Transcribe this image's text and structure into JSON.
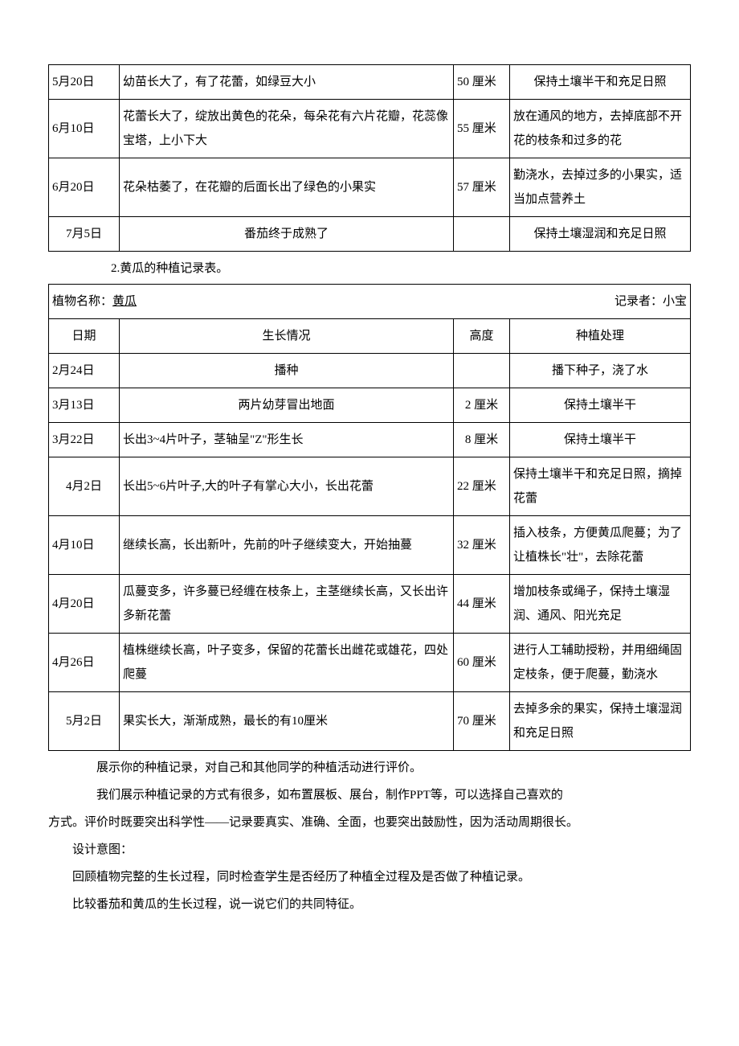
{
  "table1": {
    "rows": [
      {
        "date": "5月20日",
        "growth": "幼苗长大了，有了花蕾，如绿豆大小",
        "height": "50 厘米",
        "proc": "保持土壤半干和充足日照"
      },
      {
        "date": "6月10日",
        "growth": "花蕾长大了，绽放出黄色的花朵，每朵花有六片花瓣，花蕊像宝塔，上小下大",
        "height": "55 厘米",
        "proc": "放在通风的地方，去掉底部不开花的枝条和过多的花"
      },
      {
        "date": "6月20日",
        "growth": "花朵枯萎了，在花瓣的后面长出了绿色的小果实",
        "height": "57 厘米",
        "proc": "勤浇水，去掉过多的小果实，适当加点营养土"
      },
      {
        "date": "7月5日",
        "growth": "番茄终于成熟了",
        "height": "",
        "proc": "保持土壤湿润和充足日照"
      }
    ]
  },
  "intro2": "2.黄瓜的种植记录表。",
  "table2": {
    "header": {
      "plant_label": "植物名称：",
      "plant_name": "黄瓜",
      "recorder_label": "记录者：小宝"
    },
    "columns": {
      "date": "日期",
      "growth": "生长情况",
      "height": "高度",
      "proc": "种植处理"
    },
    "rows": [
      {
        "date": "2月24日",
        "growth": "播种",
        "height": "",
        "proc": "播下种子，浇了水"
      },
      {
        "date": "3月13日",
        "growth": "两片幼芽冒出地面",
        "height": "2 厘米",
        "proc": "保持土壤半干"
      },
      {
        "date": "3月22日",
        "growth": "长出3~4片叶子，茎轴呈\"Z\"形生长",
        "height": "8 厘米",
        "proc": "保持土壤半干"
      },
      {
        "date": "4月2日",
        "growth": "长出5~6片叶子,大的叶子有掌心大小，长出花蕾",
        "height": "22 厘米",
        "proc": "保持土壤半干和充足日照，摘掉花蕾"
      },
      {
        "date": "4月10日",
        "growth": "继续长高，长出新叶，先前的叶子继续变大，开始抽蔓",
        "height": "32 厘米",
        "proc": "插入枝条，方便黄瓜爬蔓；为了让植株长\"壮\"，去除花蕾"
      },
      {
        "date": "4月20日",
        "growth": "瓜蔓变多，许多蔓已经缠在枝条上，主茎继续长高，又长出许多新花蕾",
        "height": "44 厘米",
        "proc": "增加枝条或绳子，保持土壤湿润、通风、阳光充足"
      },
      {
        "date": "4月26日",
        "growth": "植株继续长高，叶子变多，保留的花蕾长出雌花或雄花，四处爬蔓",
        "height": "60 厘米",
        "proc": "进行人工辅助授粉，并用细绳固定枝条，便于爬蔓，勤浇水"
      },
      {
        "date": "5月2日",
        "growth": "果实长大，渐渐成熟，最长的有10厘米",
        "height": "70 厘米",
        "proc": "去掉多余的果实，保持土壤湿润和充足日照"
      }
    ]
  },
  "body": {
    "p1": "展示你的种植记录，对自己和其他同学的种植活动进行评价。",
    "p2": "我们展示种植记录的方式有很多，如布置展板、展台，制作PPT等，可以选择自己喜欢的",
    "p3": "方式。评价时既要突出科学性——记录要真实、准确、全面，也要突出鼓励性，因为活动周期很长。",
    "p4": "设计意图：",
    "p5": "回顾植物完整的生长过程，同时检查学生是否经历了种植全过程及是否做了种植记录。",
    "p6": "比较番茄和黄瓜的生长过程，说一说它们的共同特征。"
  }
}
